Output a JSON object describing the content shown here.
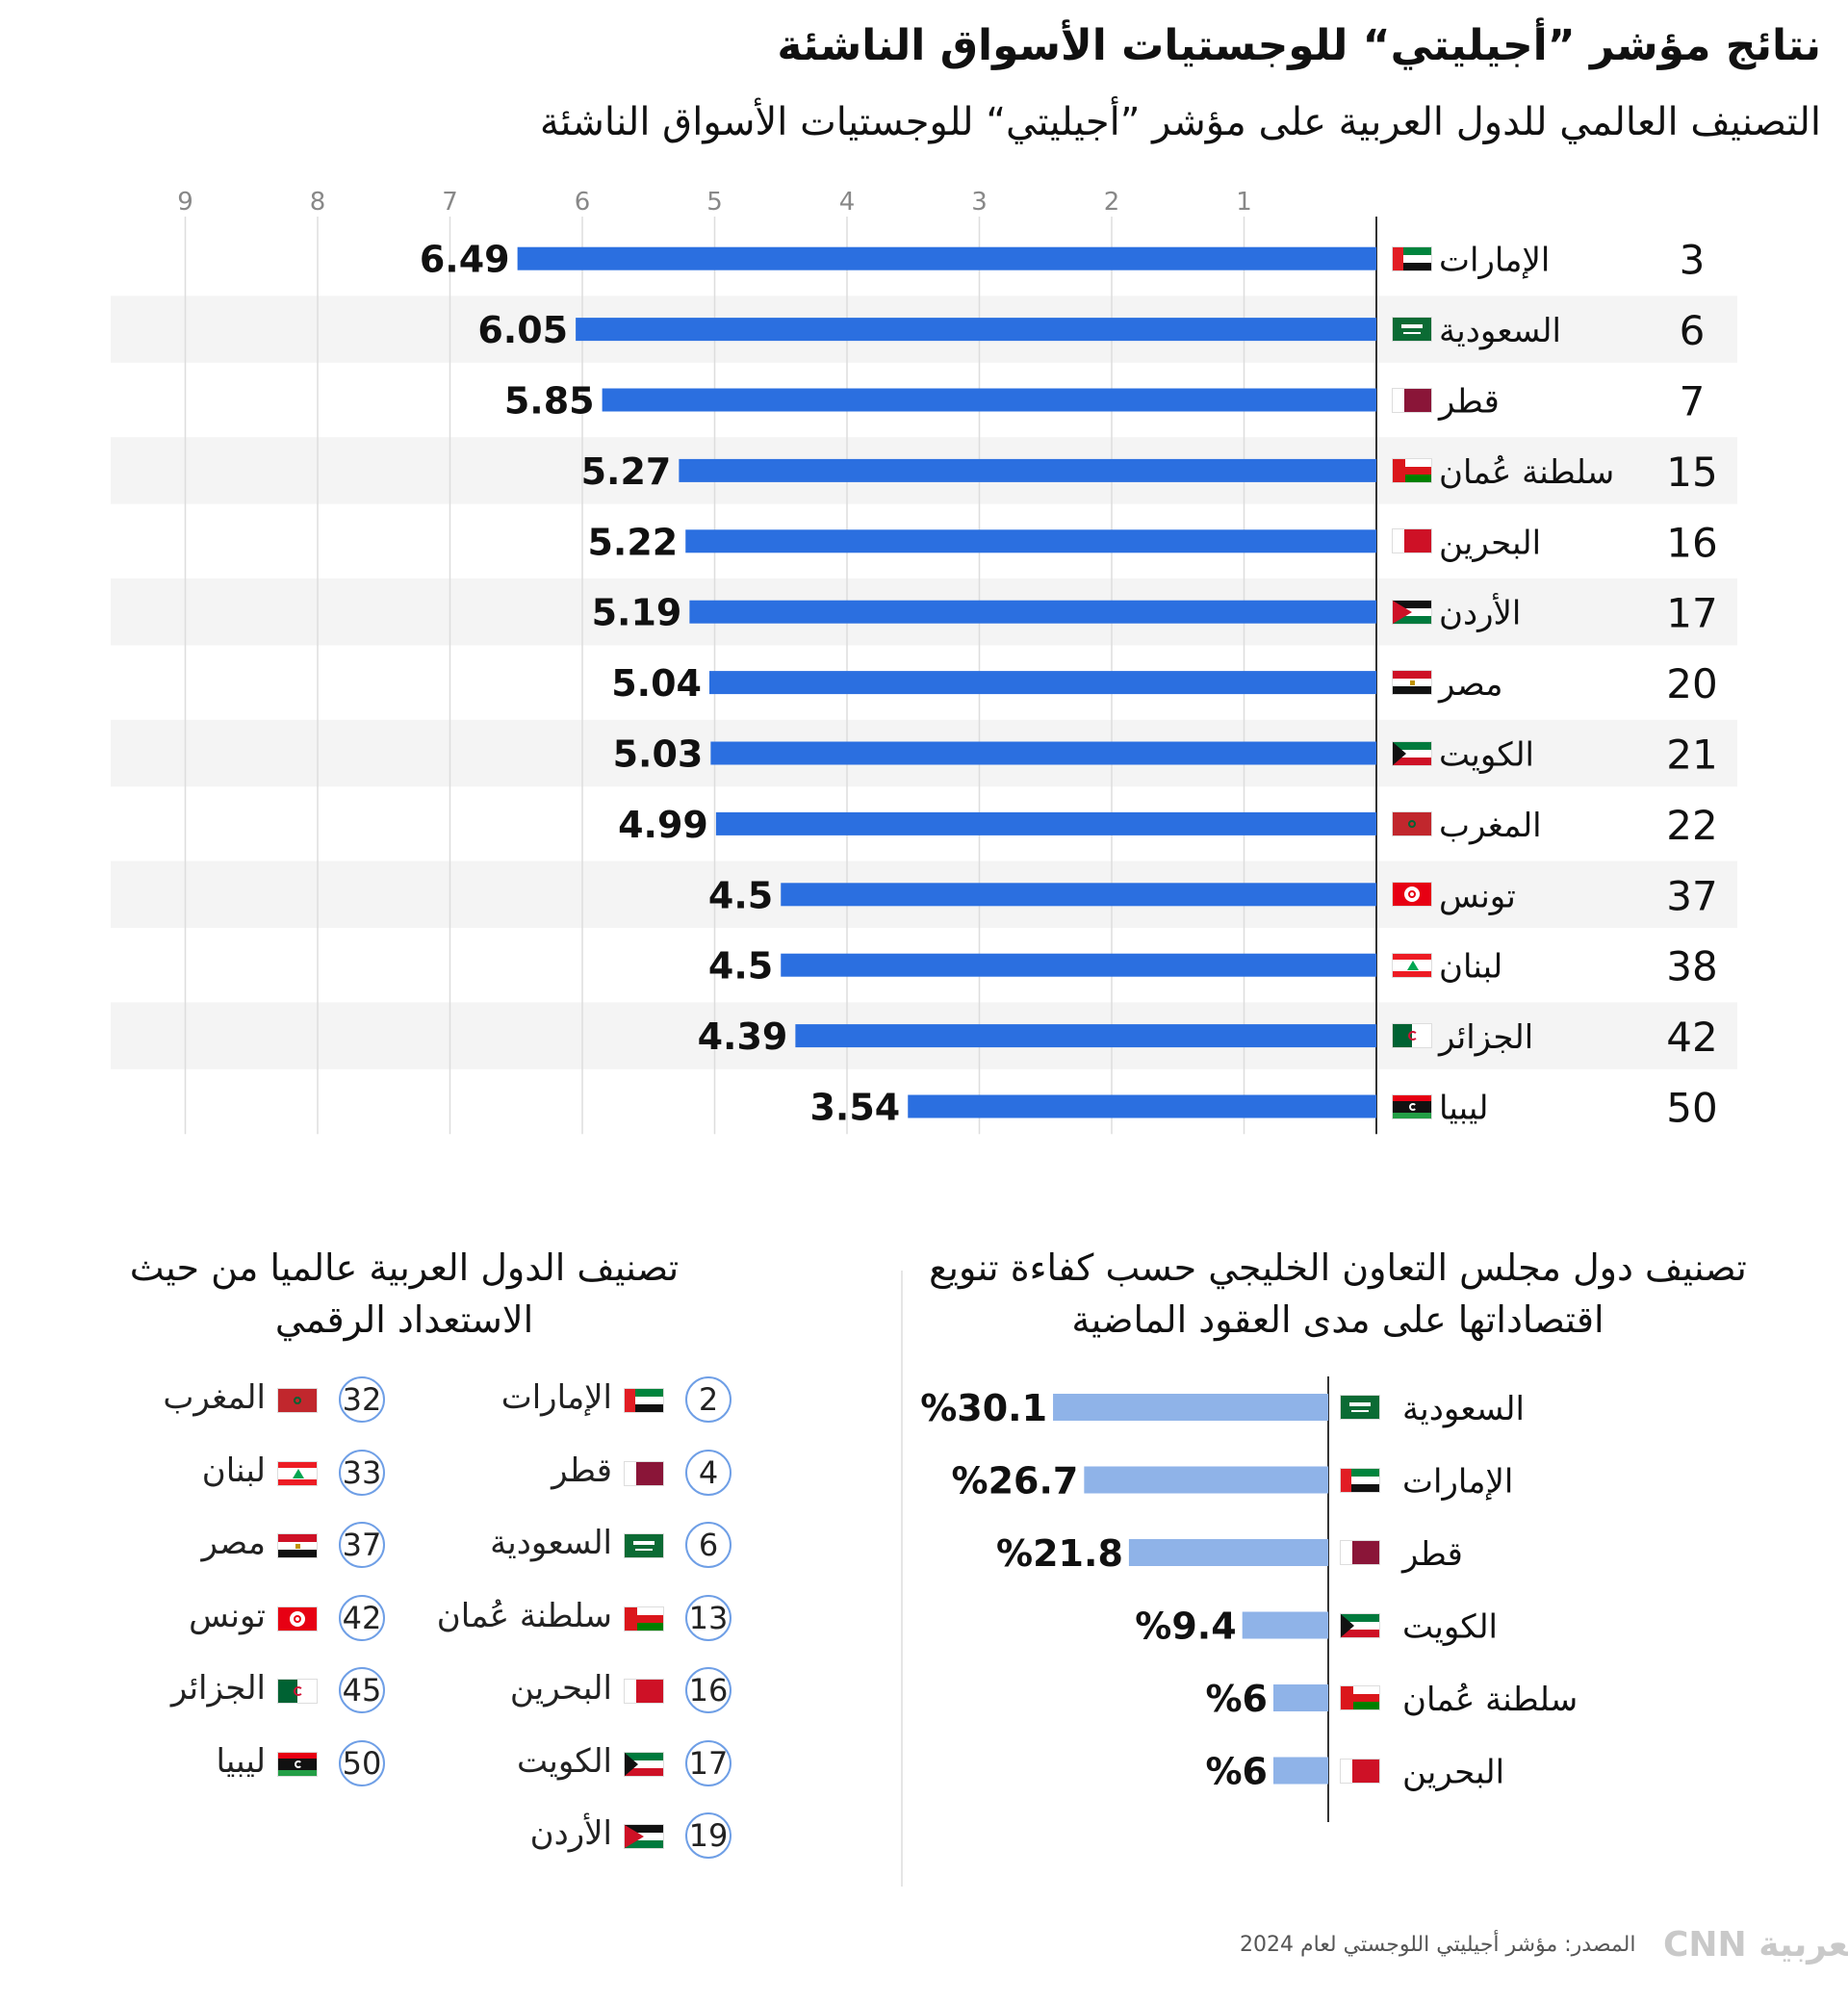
{
  "title": "نتائج مؤشر ”أجيليتي“ للوجستيات الأسواق الناشئة",
  "subtitle": "التصنيف العالمي للدول العربية على مؤشر ”أجيليتي“ للوجستيات الأسواق الناشئة",
  "chart_data": [
    {
      "type": "bar",
      "orientation": "horizontal",
      "title": "التصنيف العالمي للدول العربية على مؤشر ”أجيليتي“ للوجستيات الأسواق الناشئة",
      "categories": [
        "الإمارات",
        "السعودية",
        "قطر",
        "سلطنة عُمان",
        "البحرين",
        "الأردن",
        "مصر",
        "الكويت",
        "المغرب",
        "تونس",
        "لبنان",
        "الجزائر",
        "ليبيا"
      ],
      "values": [
        6.49,
        6.05,
        5.85,
        5.27,
        5.22,
        5.19,
        5.04,
        5.03,
        4.99,
        4.5,
        4.5,
        4.39,
        3.54
      ],
      "value_labels": [
        "6.49",
        "6.05",
        "5.85",
        "5.27",
        "5.22",
        "5.19",
        "5.04",
        "5.03",
        "4.99",
        "4.5",
        "4.5",
        "4.39",
        "3.54"
      ],
      "ranks": [
        "3",
        "6",
        "7",
        "15",
        "16",
        "17",
        "20",
        "21",
        "22",
        "37",
        "38",
        "42",
        "50"
      ],
      "flags": [
        "uae",
        "ksa",
        "qatar",
        "oman",
        "bahrain",
        "jordan",
        "egypt",
        "kuwait",
        "morocco",
        "tunisia",
        "lebanon",
        "algeria",
        "libya"
      ],
      "xlim": [
        0,
        9
      ],
      "x_ticks": [
        "1",
        "2",
        "3",
        "4",
        "5",
        "6",
        "7",
        "8",
        "9"
      ],
      "bar_color": "#2b6fe0",
      "grid": true,
      "alternating_row_background": "#f4f4f4"
    },
    {
      "type": "bar",
      "orientation": "horizontal",
      "title": "تصنيف دول مجلس التعاون الخليجي حسب كفاءة تنويع اقتصاداتها على مدى العقود الماضية",
      "categories": [
        "السعودية",
        "الإمارات",
        "قطر",
        "الكويت",
        "سلطنة عُمان",
        "البحرين"
      ],
      "values": [
        30.1,
        26.7,
        21.8,
        9.4,
        6,
        6
      ],
      "value_labels": [
        "%30.1",
        "%26.7",
        "%21.8",
        "%9.4",
        "%6",
        "%6"
      ],
      "flags": [
        "ksa",
        "uae",
        "qatar",
        "kuwait",
        "oman",
        "bahrain"
      ],
      "bar_color": "#8fb3e8"
    }
  ],
  "digital_ranking": {
    "title": "تصنيف الدول العربية عالميا من حيث الاستعداد الرقمي",
    "items": [
      {
        "rank": "2",
        "name": "الإمارات",
        "flag": "uae"
      },
      {
        "rank": "4",
        "name": "قطر",
        "flag": "qatar"
      },
      {
        "rank": "6",
        "name": "السعودية",
        "flag": "ksa"
      },
      {
        "rank": "13",
        "name": "سلطنة عُمان",
        "flag": "oman"
      },
      {
        "rank": "16",
        "name": "البحرين",
        "flag": "bahrain"
      },
      {
        "rank": "17",
        "name": "الكويت",
        "flag": "kuwait"
      },
      {
        "rank": "19",
        "name": "الأردن",
        "flag": "jordan"
      },
      {
        "rank": "32",
        "name": "المغرب",
        "flag": "morocco"
      },
      {
        "rank": "33",
        "name": "لبنان",
        "flag": "lebanon"
      },
      {
        "rank": "37",
        "name": "مصر",
        "flag": "egypt"
      },
      {
        "rank": "42",
        "name": "تونس",
        "flag": "tunisia"
      },
      {
        "rank": "45",
        "name": "الجزائر",
        "flag": "algeria"
      },
      {
        "rank": "50",
        "name": "ليبيا",
        "flag": "libya"
      }
    ]
  },
  "footer": {
    "source": "المصدر: مؤشر أجيليتي اللوجستي لعام 2024",
    "logo": "CNN بالعربية"
  },
  "colors": {
    "main_bar": "#2b6fe0",
    "gcc_bar": "#8fb3e8",
    "rank_circle": "#6f9fe6",
    "grid": "#dddddd",
    "row_alt": "#f4f4f4"
  }
}
